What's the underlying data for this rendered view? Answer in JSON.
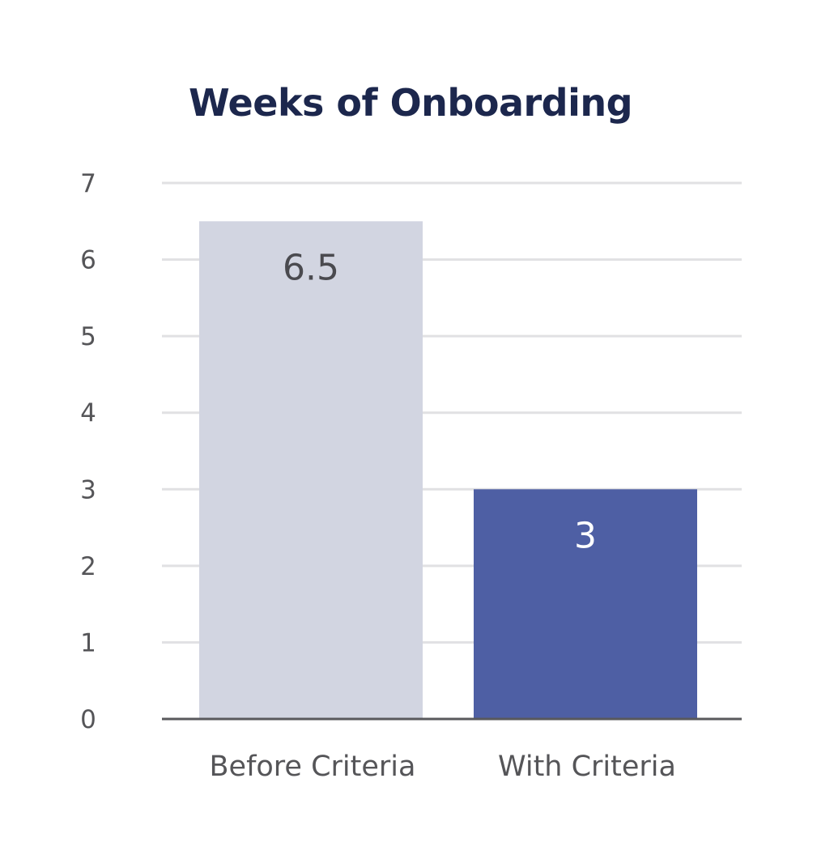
{
  "chart_data": {
    "type": "bar",
    "title": "Weeks of Onboarding",
    "xlabel": "",
    "ylabel": "",
    "categories": [
      "Before Criteria",
      "With Criteria"
    ],
    "values": [
      6.5,
      3
    ],
    "data_labels": [
      "6.5",
      "3"
    ],
    "ylim": [
      0,
      7
    ],
    "yticks": [
      0,
      1,
      2,
      3,
      4,
      5,
      6,
      7
    ],
    "grid": true,
    "legend": "none",
    "colors": {
      "bars": [
        "#d2d5e1",
        "#4e5fa4"
      ],
      "bar_labels": [
        "#4a4a4f",
        "#ffffff"
      ],
      "title": "#1c274d",
      "gridlines": "#e1e1e3",
      "axis": "#59595c",
      "tick_labels": "#555558"
    }
  }
}
